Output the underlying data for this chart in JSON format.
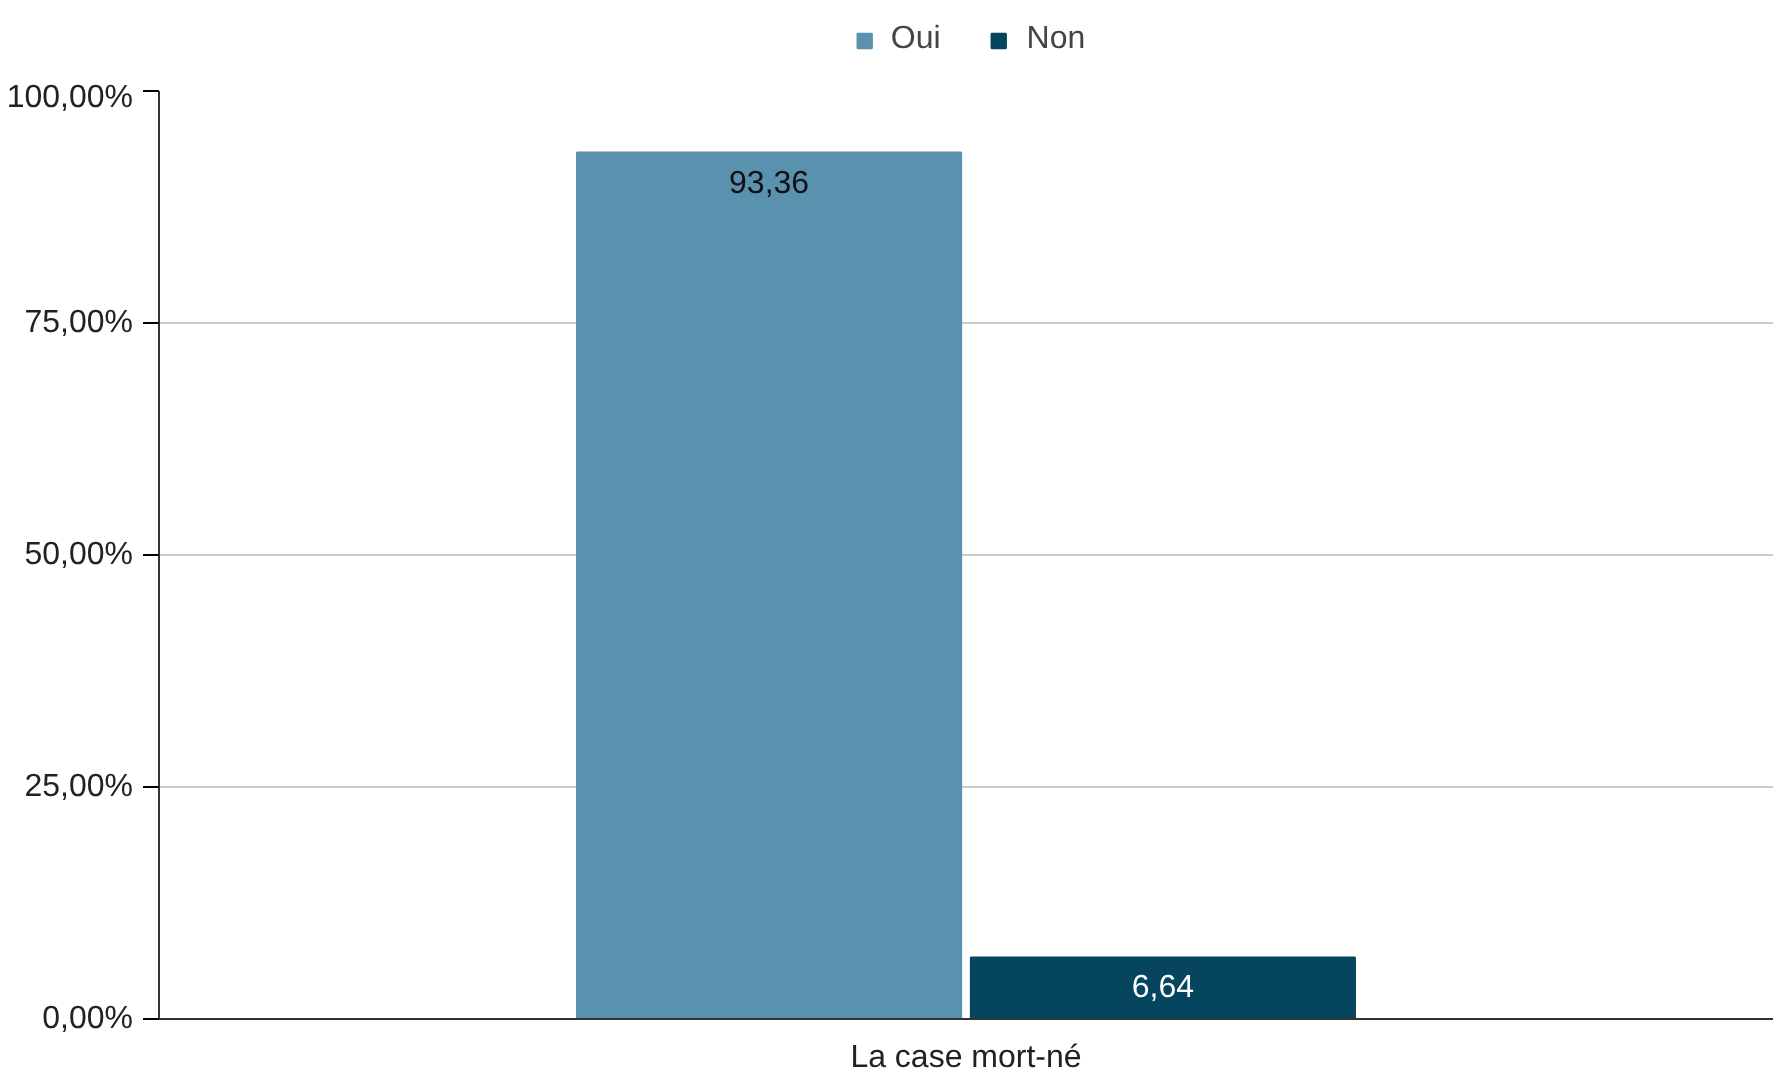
{
  "chart_data": {
    "type": "bar",
    "categories": [
      "La case mort-né"
    ],
    "series": [
      {
        "name": "Oui",
        "color": "#5a91ae",
        "values": [
          93.36
        ],
        "value_labels": [
          "93,36"
        ]
      },
      {
        "name": "Non",
        "color": "#05465e",
        "values": [
          6.64
        ],
        "value_labels": [
          "6,64"
        ]
      }
    ],
    "ylim": [
      0,
      100
    ],
    "yticks": [
      {
        "value": 0,
        "label": "0,00%"
      },
      {
        "value": 25,
        "label": "25,00%"
      },
      {
        "value": 50,
        "label": "50,00%"
      },
      {
        "value": 75,
        "label": "75,00%"
      },
      {
        "value": 100,
        "label": "100,00%"
      }
    ],
    "grid": "y",
    "legend": "top"
  }
}
